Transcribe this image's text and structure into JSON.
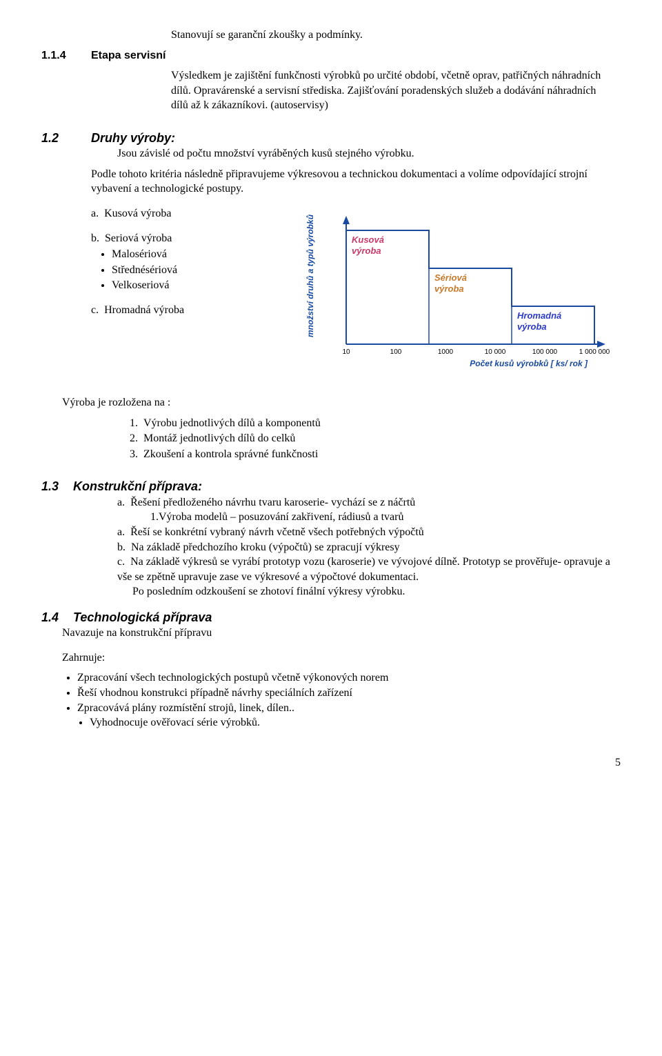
{
  "line1": "Stanovují se garanční zkoušky a podmínky.",
  "sec114": {
    "num": "1.1.4",
    "title": "Etapa servisní",
    "p": "Výsledkem je zajištění funkčnosti výrobků po určité období, včetně oprav, patřičných náhradních dílů. Opravárenské a servisní střediska. Zajišťování poradenských služeb a dodávání náhradních dílů až k zákazníkovi. (autoservisy)"
  },
  "sec12": {
    "num": "1.2",
    "title": "Druhy výroby:",
    "p1": "Jsou závislé od počtu množství vyráběných kusů stejného výrobku.",
    "p2": "Podle tohoto kritéria následně připravujeme výkresovou a technickou dokumentaci a volíme odpovídající strojní vybavení a technologické postupy.",
    "a": "Kusová výroba",
    "b": "Seriová výroba",
    "b1": "Malosériová",
    "b2": "Střednésériová",
    "b3": "Velkoseriová",
    "c": "Hromadná výroba"
  },
  "rozlozena": {
    "intro": "Výroba je rozložena na :",
    "i1": "Výrobu jednotlivých dílů a komponentů",
    "i2": "Montáž jednotlivých dílů do celků",
    "i3": "Zkoušení a kontrola správné funkčnosti"
  },
  "sec13": {
    "num": "1.3",
    "title": "Konstrukční příprava:",
    "a1": "Řešení předloženého návrhu tvaru karoserie- vychází se z náčrtů",
    "a1sub": "1.Výroba modelů – posuzování zakřivení, rádiusů a tvarů",
    "a2": "Řeší se konkrétní vybraný návrh včetně všech potřebných výpočtů",
    "b": "Na základě předchozího kroku (výpočtů) se  zpracují výkresy",
    "c": "Na základě výkresů se vyrábí prototyp vozu (karoserie) ve vývojové dílně. Prototyp se prověřuje- opravuje a vše se zpětně upravuje zase ve výkresové a výpočtové dokumentaci.",
    "post": "Po posledním odzkoušení se zhotoví finální výkresy výrobku."
  },
  "sec14": {
    "num": "1.4",
    "title": "Technologická příprava",
    "p1": "Navazuje na konstrukční přípravu",
    "p2": "Zahrnuje:",
    "b1": "Zpracování všech technologických postupů včetně výkonových norem",
    "b2": "Řeší vhodnou konstrukci případně návrhy speciálních zařízení",
    "b3": "Zpracovává plány rozmístění strojů, linek, dílen..",
    "b4": "Vyhodnocuje ověřovací série výrobků."
  },
  "pagenum": "5",
  "chart": {
    "type": "step-chart",
    "y_label": "množství druhů a typů výrobků",
    "x_label": "Počet kusů výrobků   [ ks/ rok ]",
    "x_ticks": [
      "10",
      "100",
      "1000",
      "10 000",
      "100 000",
      "1 000 000"
    ],
    "boxes": [
      {
        "label": "Kusová výroba",
        "x_step": 0,
        "y_step": 2,
        "color": "#c93a6a"
      },
      {
        "label": "Sériová výroba",
        "x_step": 1,
        "y_step": 1,
        "color": "#c97a2a"
      },
      {
        "label": "Hromadná výroba",
        "x_step": 2,
        "y_step": 0,
        "color": "#2a3ac9"
      }
    ],
    "axis_color": "#1a4aa0",
    "text_color": "#1a4aa0",
    "step_line_color": "#1a4aa0",
    "background": "#ffffff",
    "plot": {
      "ox": 70,
      "oy": 200,
      "step_w": 120,
      "step_h": 55,
      "top_y": 20
    }
  }
}
